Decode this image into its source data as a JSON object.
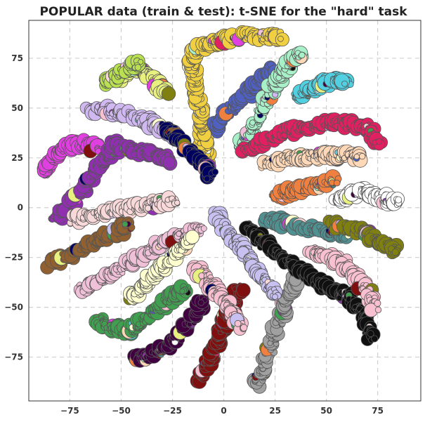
{
  "chart_data": {
    "type": "scatter",
    "title": "POPULAR data (train & test): t-SNE for the \"hard\" task",
    "xlabel": "",
    "ylabel": "",
    "xlim": [
      -95,
      96
    ],
    "ylim": [
      -97,
      94
    ],
    "xticks": [
      -75,
      -50,
      -25,
      0,
      25,
      50,
      75
    ],
    "yticks": [
      75,
      50,
      25,
      0,
      -25,
      -50,
      -75
    ],
    "xtick_labels": [
      "−75",
      "−50",
      "−25",
      "0",
      "25",
      "50",
      "75"
    ],
    "ytick_labels": [
      "75",
      "50",
      "25",
      "0",
      "−25",
      "−50",
      "−75"
    ],
    "grid": true,
    "legend": "none",
    "clusters": [
      {
        "color": "#e8f080",
        "x": [
          -52,
          -45,
          -38,
          -32,
          -28
        ],
        "y": [
          64,
          70,
          68,
          62,
          57
        ]
      },
      {
        "color": "#b8e050",
        "x": [
          -58,
          -52,
          -46,
          -42
        ],
        "y": [
          62,
          66,
          70,
          72
        ]
      },
      {
        "color": "#f0d040",
        "x": [
          -8,
          -10,
          -12,
          -14,
          -16,
          -14,
          -8,
          0,
          10,
          20,
          28
        ],
        "y": [
          20,
          35,
          50,
          62,
          72,
          78,
          82,
          84,
          86,
          86,
          86
        ]
      },
      {
        "color": "#5060c0",
        "x": [
          -4,
          0,
          6,
          12,
          18,
          24
        ],
        "y": [
          40,
          46,
          52,
          58,
          64,
          70
        ]
      },
      {
        "color": "#a8f0c8",
        "x": [
          8,
          14,
          20,
          26,
          32,
          38
        ],
        "y": [
          30,
          40,
          52,
          64,
          72,
          78
        ]
      },
      {
        "color": "#50d0e0",
        "x": [
          36,
          42,
          48,
          54,
          60
        ],
        "y": [
          56,
          59,
          62,
          63,
          64
        ]
      },
      {
        "color": "#d0b8f0",
        "x": [
          -65,
          -55,
          -45,
          -35,
          -27,
          -22
        ],
        "y": [
          49,
          49,
          46,
          42,
          38,
          34
        ]
      },
      {
        "color": "#000060",
        "x": [
          -28,
          -22,
          -16,
          -10,
          -6
        ],
        "y": [
          40,
          34,
          28,
          22,
          16
        ]
      },
      {
        "color": "#e02060",
        "x": [
          10,
          20,
          30,
          40,
          50,
          60,
          70,
          76
        ],
        "y": [
          28,
          34,
          38,
          40,
          42,
          42,
          40,
          32
        ]
      },
      {
        "color": "#e040e0",
        "x": [
          -88,
          -84,
          -78,
          -72,
          -66,
          -62
        ],
        "y": [
          18,
          24,
          30,
          32,
          32,
          30
        ]
      },
      {
        "color": "#9030b0",
        "x": [
          -82,
          -76,
          -70,
          -64,
          -58,
          -52
        ],
        "y": [
          -6,
          0,
          8,
          16,
          24,
          30
        ]
      },
      {
        "color": "#9030b0",
        "x": [
          -56,
          -48,
          -40,
          -32,
          -26
        ],
        "y": [
          32,
          30,
          28,
          26,
          24
        ]
      },
      {
        "color": "#ffd8b8",
        "x": [
          20,
          28,
          36,
          44,
          52,
          60,
          66
        ],
        "y": [
          22,
          24,
          25,
          26,
          26,
          26,
          25
        ]
      },
      {
        "color": "#f08040",
        "x": [
          25,
          32,
          40,
          48,
          55
        ],
        "y": [
          6,
          8,
          10,
          12,
          14
        ]
      },
      {
        "color": "#ffffff",
        "x": [
          55,
          62,
          68,
          74,
          80,
          86
        ],
        "y": [
          4,
          6,
          8,
          6,
          4,
          2
        ]
      },
      {
        "color": "#509090",
        "x": [
          20,
          30,
          40,
          50,
          60
        ],
        "y": [
          -6,
          -8,
          -10,
          -12,
          -14
        ]
      },
      {
        "color": "#808010",
        "x": [
          52,
          60,
          68,
          74,
          80,
          84
        ],
        "y": [
          -8,
          -10,
          -12,
          -16,
          -18,
          -22
        ]
      },
      {
        "color": "#f8d8d8",
        "x": [
          -74,
          -64,
          -54,
          -44,
          -34,
          -24
        ],
        "y": [
          -6,
          -4,
          -2,
          0,
          2,
          4
        ]
      },
      {
        "color": "#f0c0d8",
        "x": [
          -70,
          -60,
          -50,
          -40,
          -30,
          -20,
          -10
        ],
        "y": [
          -42,
          -36,
          -30,
          -24,
          -18,
          -14,
          -10
        ]
      },
      {
        "color": "#906030",
        "x": [
          -84,
          -76,
          -68,
          -60,
          -52,
          -46
        ],
        "y": [
          -28,
          -24,
          -20,
          -16,
          -12,
          -8
        ]
      },
      {
        "color": "#ffffd0",
        "x": [
          -46,
          -40,
          -34,
          -28,
          -22,
          -16
        ],
        "y": [
          -46,
          -40,
          -34,
          -28,
          -22,
          -16
        ]
      },
      {
        "color": "#40a050",
        "x": [
          -62,
          -56,
          -48,
          -40,
          -32,
          -24,
          -18
        ],
        "y": [
          -56,
          -60,
          -62,
          -58,
          -50,
          -44,
          -40
        ]
      },
      {
        "color": "#400040",
        "x": [
          -44,
          -36,
          -28,
          -20,
          -14,
          -10
        ],
        "y": [
          -76,
          -74,
          -70,
          -62,
          -54,
          -46
        ]
      },
      {
        "color": "#801010",
        "x": [
          -12,
          -8,
          -4,
          0,
          4,
          8
        ],
        "y": [
          -86,
          -78,
          -70,
          -60,
          -50,
          -40
        ]
      },
      {
        "color": "#a0a0a0",
        "x": [
          16,
          20,
          24,
          28,
          32,
          36
        ],
        "y": [
          -88,
          -78,
          -66,
          -54,
          -44,
          -34
        ]
      },
      {
        "color": "#101010",
        "x": [
          12,
          20,
          30,
          40,
          50,
          60,
          68,
          72
        ],
        "y": [
          -10,
          -18,
          -26,
          -34,
          -40,
          -44,
          -52,
          -66
        ]
      },
      {
        "color": "#f8c0d0",
        "x": [
          42,
          50,
          58,
          64,
          70,
          74
        ],
        "y": [
          -22,
          -24,
          -28,
          -34,
          -42,
          -50
        ]
      },
      {
        "color": "#f8c0d0",
        "x": [
          -14,
          -8,
          -2,
          4,
          8
        ],
        "y": [
          -30,
          -36,
          -44,
          -52,
          -60
        ]
      },
      {
        "color": "#c8c0f0",
        "x": [
          -4,
          2,
          8,
          14,
          20,
          26
        ],
        "y": [
          -4,
          -12,
          -20,
          -28,
          -36,
          -44
        ]
      }
    ],
    "accent_colors": [
      "#e8f080",
      "#f0d040",
      "#5060c0",
      "#a8f0c8",
      "#50d0e0",
      "#d0b8f0",
      "#000060",
      "#e02060",
      "#e040e0",
      "#9030b0",
      "#ffd8b8",
      "#f08040",
      "#ffffff",
      "#509090",
      "#808010",
      "#f8d8d8",
      "#f0c0d8",
      "#906030",
      "#ffffd0",
      "#40a050",
      "#400040",
      "#801010",
      "#a0a0a0",
      "#101010",
      "#f8c0d0",
      "#c8c0f0"
    ]
  }
}
